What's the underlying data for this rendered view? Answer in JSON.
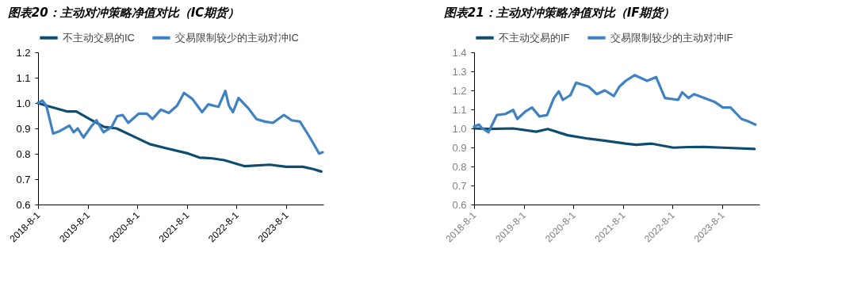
{
  "chart_data": [
    {
      "type": "line",
      "title": "图表20：主动对冲策略净值对比（IC期货）",
      "legend": "top left",
      "grid": false,
      "line_style": "solid",
      "marker": "none",
      "xlim": [
        "2018-08-01",
        "2024-05-01"
      ],
      "ylim": [
        0.6,
        1.2
      ],
      "yticks": [
        {
          "value": 0.6,
          "label": "0.6"
        },
        {
          "value": 0.7,
          "label": "0.7"
        },
        {
          "value": 0.8,
          "label": "0.8"
        },
        {
          "value": 0.9,
          "label": "0.9"
        },
        {
          "value": 1.0,
          "label": "1.0"
        },
        {
          "value": 1.1,
          "label": "1.1"
        },
        {
          "value": 1.2,
          "label": "1.2"
        }
      ],
      "xticks": [
        {
          "value": "2018-08-01",
          "label": "2018-8-1"
        },
        {
          "value": "2019-08-01",
          "label": "2019-8-1"
        },
        {
          "value": "2020-08-01",
          "label": "2020-8-1"
        },
        {
          "value": "2021-08-01",
          "label": "2021-8-1"
        },
        {
          "value": "2022-08-01",
          "label": "2022-8-1"
        },
        {
          "value": "2023-08-01",
          "label": "2023-8-1"
        }
      ],
      "series": [
        {
          "name": "不主动交易的IC",
          "color": "#0e4d70",
          "x": [
            "2018-08-01",
            "2018-10-01",
            "2019-03-01",
            "2019-05-10",
            "2019-08-15",
            "2019-12-01",
            "2020-03-01",
            "2020-08-10",
            "2020-11-01",
            "2021-03-01",
            "2021-08-10",
            "2021-11-01",
            "2022-02-01",
            "2022-05-01",
            "2022-10-01",
            "2023-04-01",
            "2023-08-01",
            "2023-12-01",
            "2024-02-15",
            "2024-04-15"
          ],
          "values": [
            1.0,
            0.99,
            0.967,
            0.967,
            0.937,
            0.906,
            0.9,
            0.859,
            0.838,
            0.822,
            0.801,
            0.785,
            0.782,
            0.775,
            0.751,
            0.757,
            0.749,
            0.749,
            0.74,
            0.73
          ]
        },
        {
          "name": "交易限制较少的主动对冲IC",
          "color": "#3f82c4",
          "x": [
            "2018-08-01",
            "2018-09-01",
            "2018-10-01",
            "2018-11-20",
            "2019-01-10",
            "2019-03-20",
            "2019-04-20",
            "2019-05-20",
            "2019-07-01",
            "2019-08-25",
            "2019-10-05",
            "2019-11-25",
            "2020-01-25",
            "2020-03-05",
            "2020-04-15",
            "2020-05-25",
            "2020-08-10",
            "2020-10-10",
            "2020-11-20",
            "2021-01-20",
            "2021-03-20",
            "2021-05-20",
            "2021-07-10",
            "2021-09-10",
            "2021-11-20",
            "2022-01-05",
            "2022-03-20",
            "2022-05-10",
            "2022-06-05",
            "2022-07-05",
            "2022-08-15",
            "2022-10-25",
            "2022-12-25",
            "2023-02-25",
            "2023-04-25",
            "2023-07-15",
            "2023-09-10",
            "2023-11-10",
            "2024-01-10",
            "2024-02-20",
            "2024-03-30",
            "2024-04-25"
          ],
          "values": [
            1.0,
            1.01,
            0.99,
            0.88,
            0.89,
            0.911,
            0.885,
            0.9,
            0.864,
            0.906,
            0.932,
            0.885,
            0.906,
            0.948,
            0.953,
            0.922,
            0.958,
            0.958,
            0.937,
            0.974,
            0.961,
            0.99,
            1.04,
            1.016,
            0.964,
            0.995,
            0.985,
            1.048,
            0.99,
            0.964,
            1.02,
            0.98,
            0.937,
            0.927,
            0.922,
            0.953,
            0.932,
            0.927,
            0.875,
            0.838,
            0.801,
            0.806
          ]
        }
      ]
    },
    {
      "type": "line",
      "title": "图表21：主动对冲策略净值对比（IF期货）",
      "legend": "top left",
      "grid": false,
      "line_style": "solid",
      "marker": "none",
      "xlim": [
        "2018-08-01",
        "2024-05-01"
      ],
      "ylim": [
        0.6,
        1.4
      ],
      "yticks": [
        {
          "value": 0.6,
          "label": "0.6"
        },
        {
          "value": 0.7,
          "label": "0.7"
        },
        {
          "value": 0.8,
          "label": "0.8"
        },
        {
          "value": 0.9,
          "label": "0.9"
        },
        {
          "value": 1.0,
          "label": "1.0"
        },
        {
          "value": 1.1,
          "label": "1.1"
        },
        {
          "value": 1.2,
          "label": "1.2"
        },
        {
          "value": 1.3,
          "label": "1.3"
        },
        {
          "value": 1.4,
          "label": "1.4"
        }
      ],
      "xticks": [
        {
          "value": "2018-08-01",
          "label": "2018-8-1"
        },
        {
          "value": "2019-08-01",
          "label": "2019-8-1"
        },
        {
          "value": "2020-08-01",
          "label": "2020-8-1"
        },
        {
          "value": "2021-08-01",
          "label": "2021-8-1"
        },
        {
          "value": "2022-08-01",
          "label": "2022-8-1"
        },
        {
          "value": "2023-08-01",
          "label": "2023-8-1"
        }
      ],
      "series": [
        {
          "name": "不主动交易的IF",
          "color": "#0e4d70",
          "x": [
            "2018-08-01",
            "2018-11-20",
            "2019-05-15",
            "2019-11-01",
            "2020-01-25",
            "2020-06-20",
            "2020-11-20",
            "2021-04-25",
            "2021-08-20",
            "2021-11-05",
            "2022-03-01",
            "2022-08-05",
            "2022-11-25",
            "2023-03-20",
            "2023-08-05",
            "2024-03-25"
          ],
          "values": [
            1.0,
            0.997,
            1.0,
            0.983,
            0.997,
            0.964,
            0.946,
            0.932,
            0.92,
            0.914,
            0.92,
            0.899,
            0.902,
            0.903,
            0.899,
            0.892
          ]
        },
        {
          "name": "交易限制较少的主动对冲IF",
          "color": "#3f82c4",
          "x": [
            "2018-08-01",
            "2018-09-05",
            "2018-10-01",
            "2018-11-15",
            "2019-01-15",
            "2019-03-20",
            "2019-05-15",
            "2019-06-15",
            "2019-08-15",
            "2019-10-01",
            "2019-11-25",
            "2020-01-20",
            "2020-03-10",
            "2020-04-15",
            "2020-05-15",
            "2020-07-10",
            "2020-08-20",
            "2020-10-05",
            "2020-11-20",
            "2021-01-20",
            "2021-03-20",
            "2021-05-25",
            "2021-07-05",
            "2021-08-20",
            "2021-10-25",
            "2022-01-25",
            "2022-04-01",
            "2022-06-05",
            "2022-09-10",
            "2022-10-10",
            "2022-11-25",
            "2023-01-05",
            "2023-03-20",
            "2023-06-05",
            "2023-08-05",
            "2023-10-01",
            "2023-12-20",
            "2024-02-15",
            "2024-04-01"
          ],
          "values": [
            1.01,
            1.02,
            1.0,
            0.98,
            1.07,
            1.076,
            1.097,
            1.05,
            1.09,
            1.11,
            1.063,
            1.07,
            1.16,
            1.195,
            1.15,
            1.175,
            1.24,
            1.23,
            1.22,
            1.18,
            1.2,
            1.17,
            1.22,
            1.25,
            1.28,
            1.25,
            1.27,
            1.16,
            1.15,
            1.19,
            1.16,
            1.18,
            1.16,
            1.14,
            1.11,
            1.11,
            1.05,
            1.035,
            1.02
          ]
        }
      ]
    }
  ]
}
